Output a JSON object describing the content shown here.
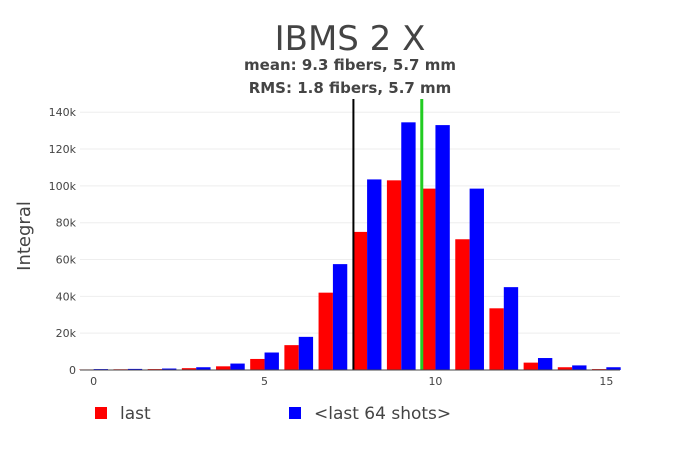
{
  "chart_data": {
    "type": "bar",
    "title": "IBMS 2 X",
    "subtitle_lines": [
      "mean: 9.3 fibers, 5.7 mm",
      "RMS: 1.8 fibers, 5.7 mm"
    ],
    "xlabel": "",
    "ylabel": "Integral",
    "xlim": [
      -0.4,
      15.4
    ],
    "ylim": [
      0,
      145000
    ],
    "x_ticks": [
      0,
      5,
      10,
      15
    ],
    "x_tick_labels": [
      "0",
      "5",
      "10",
      "15"
    ],
    "y_ticks": [
      0,
      20000,
      40000,
      60000,
      80000,
      100000,
      120000,
      140000
    ],
    "y_tick_labels": [
      "0",
      "20k",
      "40k",
      "60k",
      "80k",
      "100k",
      "120k",
      "140k"
    ],
    "grid": true,
    "legend_position": "bottom",
    "x": [
      0,
      1,
      2,
      3,
      4,
      5,
      6,
      7,
      8,
      9,
      10,
      11,
      12,
      13,
      14,
      15
    ],
    "series": [
      {
        "name": "last",
        "color": "#ff0000",
        "values": [
          300,
          400,
          500,
          1000,
          2000,
          6000,
          13500,
          42000,
          75000,
          103000,
          98500,
          71000,
          33500,
          4000,
          1500,
          500
        ]
      },
      {
        "name": "<last 64 shots>",
        "color": "#0000ff",
        "values": [
          500,
          600,
          800,
          1500,
          3500,
          9500,
          18000,
          57500,
          103500,
          134500,
          133000,
          98500,
          45000,
          6500,
          2500,
          1500
        ]
      }
    ],
    "vertical_lines": [
      {
        "x": 7.6,
        "color": "#000000"
      },
      {
        "x": 9.6,
        "color": "#22cc22"
      }
    ]
  }
}
